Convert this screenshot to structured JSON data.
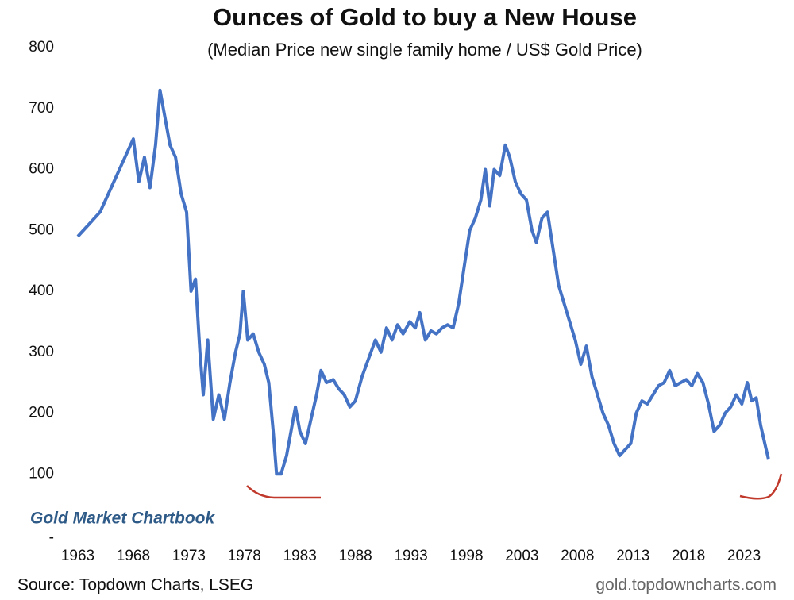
{
  "chart_data": {
    "type": "line",
    "title": "Ounces of Gold to buy a New House",
    "subtitle": "(Median Price new single family home / US$ Gold Price)",
    "annotation": "Gold Market Chartbook",
    "source": "Source: Topdown Charts, LSEG",
    "website": "gold.topdowncharts.com",
    "color": "#4472c4",
    "x": [
      1963,
      1964,
      1965,
      1966,
      1967,
      1968,
      1968.5,
      1969,
      1969.5,
      1970,
      1970.4,
      1970.8,
      1971.3,
      1971.8,
      1972.3,
      1972.8,
      1973.2,
      1973.6,
      1974,
      1974.3,
      1974.7,
      1975.2,
      1975.7,
      1976.2,
      1976.7,
      1977.2,
      1977.6,
      1977.9,
      1978.3,
      1978.8,
      1979.3,
      1979.8,
      1980.2,
      1980.6,
      1980.9,
      1981.3,
      1981.8,
      1982.2,
      1982.6,
      1983,
      1983.5,
      1984,
      1984.5,
      1984.9,
      1985.4,
      1986,
      1986.5,
      1987,
      1987.5,
      1988,
      1988.6,
      1989.2,
      1989.8,
      1990.3,
      1990.8,
      1991.3,
      1991.8,
      1992.3,
      1992.9,
      1993.4,
      1993.8,
      1994.3,
      1994.8,
      1995.3,
      1995.8,
      1996.3,
      1996.8,
      1997.3,
      1997.8,
      1998.3,
      1998.8,
      1999.3,
      1999.7,
      2000.1,
      2000.5,
      2001,
      2001.5,
      2001.9,
      2002.4,
      2002.9,
      2003.4,
      2003.9,
      2004.3,
      2004.8,
      2005.3,
      2005.8,
      2006.3,
      2006.8,
      2007.3,
      2007.8,
      2008.3,
      2008.8,
      2009.3,
      2009.8,
      2010.3,
      2010.8,
      2011.3,
      2011.8,
      2012.3,
      2012.8,
      2013.3,
      2013.8,
      2014.3,
      2014.8,
      2015.3,
      2015.8,
      2016.3,
      2016.8,
      2017.3,
      2017.8,
      2018.3,
      2018.8,
      2019.3,
      2019.8,
      2020.3,
      2020.8,
      2021.3,
      2021.8,
      2022.3,
      2022.8,
      2023.3,
      2023.7,
      2024.1,
      2024.5,
      2025,
      2025.2
    ],
    "values": [
      490,
      510,
      530,
      570,
      610,
      650,
      580,
      620,
      570,
      640,
      730,
      690,
      640,
      620,
      560,
      530,
      400,
      420,
      300,
      230,
      320,
      190,
      230,
      190,
      250,
      300,
      330,
      400,
      320,
      330,
      300,
      280,
      250,
      170,
      100,
      100,
      130,
      170,
      210,
      170,
      150,
      190,
      230,
      270,
      250,
      255,
      240,
      230,
      210,
      220,
      260,
      290,
      320,
      300,
      340,
      320,
      345,
      330,
      350,
      340,
      365,
      320,
      335,
      330,
      340,
      345,
      340,
      380,
      440,
      500,
      520,
      550,
      600,
      540,
      600,
      590,
      640,
      620,
      580,
      560,
      550,
      500,
      480,
      520,
      530,
      470,
      410,
      380,
      350,
      320,
      280,
      310,
      260,
      230,
      200,
      180,
      150,
      130,
      140,
      150,
      200,
      220,
      215,
      230,
      245,
      250,
      270,
      245,
      250,
      255,
      245,
      265,
      250,
      215,
      170,
      180,
      200,
      210,
      230,
      215,
      250,
      220,
      225,
      180,
      140,
      125
    ],
    "xlim": [
      1963,
      2026
    ],
    "xticks": [
      1963,
      1968,
      1973,
      1978,
      1983,
      1988,
      1993,
      1998,
      2003,
      2008,
      2013,
      2018,
      2023
    ],
    "ylim": [
      0,
      800
    ],
    "yticks": [
      {
        "value": 0,
        "label": "-"
      },
      100,
      200,
      300,
      400,
      500,
      600,
      700,
      800
    ]
  }
}
